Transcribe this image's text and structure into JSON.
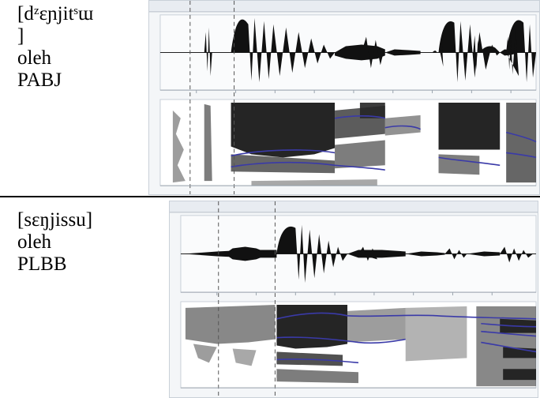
{
  "rows": [
    {
      "lines": [
        "[dᶻɛɲjitˢɯ",
        "]",
        "oleh",
        "PABJ"
      ]
    },
    {
      "lines": [
        "[sɛŋjissu]",
        "oleh",
        "PLBB"
      ]
    }
  ],
  "colors": {
    "wave": "#111111",
    "formant": "#3a3aa8",
    "panel": "#f4f6f8",
    "border": "#c9d0d8"
  }
}
